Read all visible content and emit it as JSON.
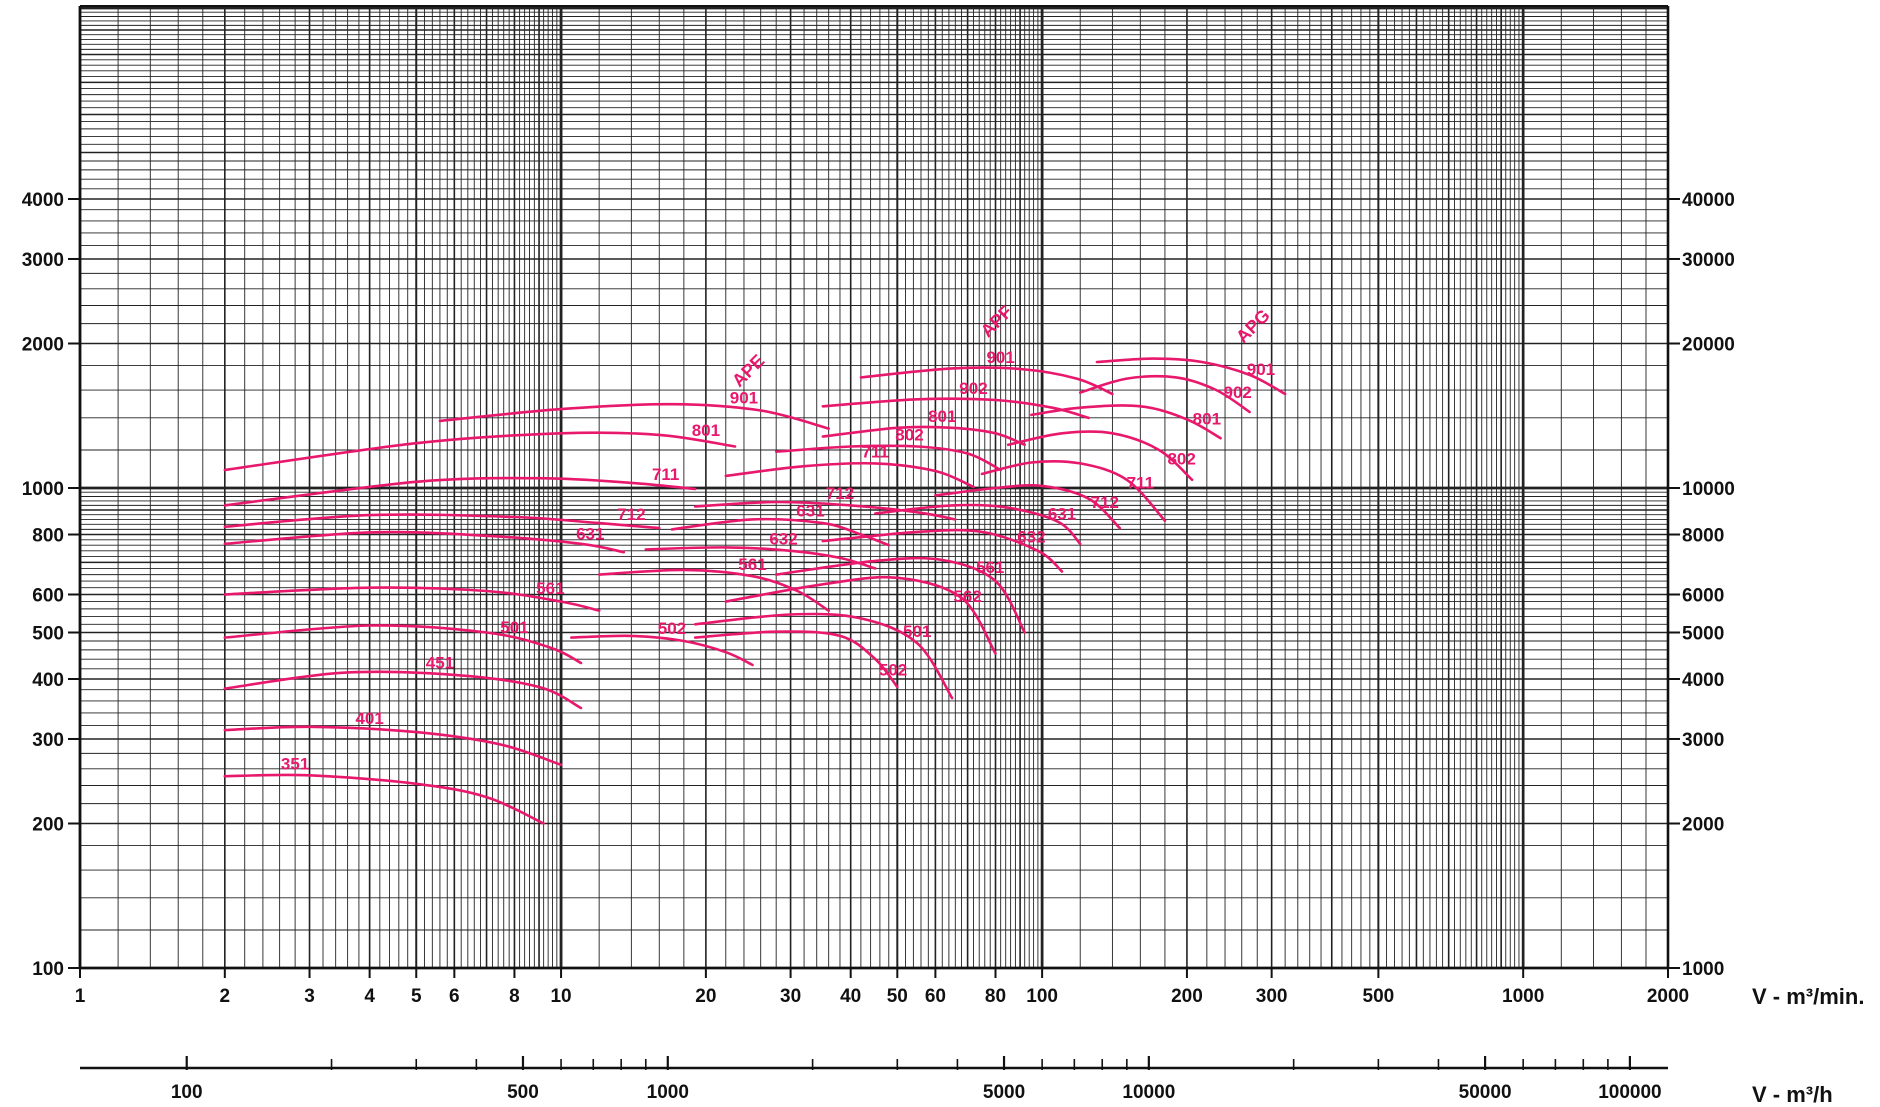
{
  "chart_data": {
    "type": "line",
    "title": "",
    "x_scale": "log",
    "y_scale": "log",
    "xlim": [
      1,
      2000
    ],
    "ylim": [
      100,
      10000
    ],
    "y_right_factor": 10,
    "x_bottom_factor": 60,
    "left_y_ticks": [
      {
        "value": 100,
        "label": "100"
      },
      {
        "value": 200,
        "label": "200"
      },
      {
        "value": 300,
        "label": "300"
      },
      {
        "value": 400,
        "label": "400"
      },
      {
        "value": 500,
        "label": "500"
      },
      {
        "value": 600,
        "label": "600"
      },
      {
        "value": 800,
        "label": "800"
      },
      {
        "value": 1000,
        "label": "1000"
      },
      {
        "value": 2000,
        "label": "2000"
      },
      {
        "value": 3000,
        "label": "3000"
      },
      {
        "value": 4000,
        "label": "4000"
      }
    ],
    "right_y_ticks": [
      {
        "value": 100,
        "label": "1000"
      },
      {
        "value": 200,
        "label": "2000"
      },
      {
        "value": 300,
        "label": "3000"
      },
      {
        "value": 400,
        "label": "4000"
      },
      {
        "value": 500,
        "label": "5000"
      },
      {
        "value": 600,
        "label": "6000"
      },
      {
        "value": 800,
        "label": "8000"
      },
      {
        "value": 1000,
        "label": "10000"
      },
      {
        "value": 2000,
        "label": "20000"
      },
      {
        "value": 3000,
        "label": "30000"
      },
      {
        "value": 4000,
        "label": "40000"
      }
    ],
    "x_ticks": [
      {
        "value": 1,
        "label": "1"
      },
      {
        "value": 2,
        "label": "2"
      },
      {
        "value": 3,
        "label": "3"
      },
      {
        "value": 4,
        "label": "4"
      },
      {
        "value": 5,
        "label": "5"
      },
      {
        "value": 6,
        "label": "6"
      },
      {
        "value": 8,
        "label": "8"
      },
      {
        "value": 10,
        "label": "10"
      },
      {
        "value": 20,
        "label": "20"
      },
      {
        "value": 30,
        "label": "30"
      },
      {
        "value": 40,
        "label": "40"
      },
      {
        "value": 50,
        "label": "50"
      },
      {
        "value": 60,
        "label": "60"
      },
      {
        "value": 80,
        "label": "80"
      },
      {
        "value": 100,
        "label": "100"
      },
      {
        "value": 200,
        "label": "200"
      },
      {
        "value": 300,
        "label": "300"
      },
      {
        "value": 500,
        "label": "500"
      },
      {
        "value": 1000,
        "label": "1000"
      },
      {
        "value": 2000,
        "label": "2000"
      }
    ],
    "xlabel": "V - m³/min.",
    "x2_ticks": [
      {
        "value": 100,
        "label": "100"
      },
      {
        "value": 500,
        "label": "500"
      },
      {
        "value": 1000,
        "label": "1000"
      },
      {
        "value": 5000,
        "label": "5000"
      },
      {
        "value": 10000,
        "label": "10000"
      },
      {
        "value": 50000,
        "label": "50000"
      },
      {
        "value": 100000,
        "label": "100000"
      }
    ],
    "x2_minor_ticks": [
      200,
      300,
      400,
      600,
      700,
      800,
      900,
      2000,
      3000,
      4000,
      6000,
      7000,
      8000,
      9000,
      20000,
      30000,
      40000,
      60000,
      70000,
      80000,
      90000
    ],
    "x2label": "V - m³/h",
    "series_color": "#e8186d",
    "group_labels": [
      {
        "text": "APE",
        "x": 25,
        "y": 1720
      },
      {
        "text": "APF",
        "x": 82,
        "y": 2180
      },
      {
        "text": "APG",
        "x": 280,
        "y": 2130
      }
    ],
    "series": [
      {
        "name": "351",
        "points": [
          [
            2,
            251
          ],
          [
            3,
            252
          ],
          [
            5,
            242
          ],
          [
            7,
            227
          ],
          [
            9.2,
            200
          ]
        ],
        "label_x": 2.8
      },
      {
        "name": "401",
        "points": [
          [
            2,
            313
          ],
          [
            3,
            318
          ],
          [
            5,
            310
          ],
          [
            7.5,
            292
          ],
          [
            10,
            265
          ]
        ],
        "label_x": 4.0
      },
      {
        "name": "451",
        "points": [
          [
            2,
            382
          ],
          [
            3.5,
            412
          ],
          [
            6,
            408
          ],
          [
            9,
            385
          ],
          [
            11,
            348
          ]
        ],
        "label_x": 5.6
      },
      {
        "name": "501",
        "points": [
          [
            2,
            488
          ],
          [
            4,
            517
          ],
          [
            7,
            500
          ],
          [
            9.5,
            465
          ],
          [
            11,
            432
          ]
        ],
        "label_x": 8.0
      },
      {
        "name": "561",
        "points": [
          [
            2,
            600
          ],
          [
            4,
            620
          ],
          [
            7,
            610
          ],
          [
            10,
            580
          ],
          [
            12,
            555
          ]
        ],
        "label_x": 9.5
      },
      {
        "name": "631",
        "points": [
          [
            2,
            765
          ],
          [
            4,
            808
          ],
          [
            7,
            795
          ],
          [
            11,
            765
          ],
          [
            13.5,
            735
          ]
        ],
        "label_x": 11.5
      },
      {
        "name": "712",
        "points": [
          [
            2,
            830
          ],
          [
            4,
            878
          ],
          [
            8,
            870
          ],
          [
            12,
            845
          ],
          [
            16,
            825
          ]
        ],
        "label_x": 14.0
      },
      {
        "name": "711",
        "points": [
          [
            2,
            920
          ],
          [
            5,
            1030
          ],
          [
            9,
            1048
          ],
          [
            14,
            1025
          ],
          [
            19,
            995
          ]
        ],
        "label_x": 16.5
      },
      {
        "name": "801",
        "points": [
          [
            2,
            1090
          ],
          [
            5,
            1240
          ],
          [
            10,
            1300
          ],
          [
            16,
            1290
          ],
          [
            23,
            1220
          ]
        ],
        "label_x": 20.0
      },
      {
        "name": "901",
        "points": [
          [
            5.6,
            1380
          ],
          [
            10,
            1460
          ],
          [
            17,
            1495
          ],
          [
            26,
            1450
          ],
          [
            36,
            1330
          ]
        ],
        "label_x": 24.0
      },
      {
        "name": "502",
        "points": [
          [
            10.5,
            488
          ],
          [
            14,
            492
          ],
          [
            18,
            480
          ],
          [
            22,
            455
          ],
          [
            25,
            428
          ]
        ],
        "label_x": 17.0
      },
      {
        "name": "561",
        "points": [
          [
            12,
            660
          ],
          [
            18,
            675
          ],
          [
            25,
            655
          ],
          [
            31,
            610
          ],
          [
            36,
            555
          ]
        ],
        "label_x": 25.0
      },
      {
        "name": "632",
        "points": [
          [
            15,
            745
          ],
          [
            22,
            752
          ],
          [
            30,
            740
          ],
          [
            38,
            715
          ],
          [
            45,
            680
          ]
        ],
        "label_x": 29.0
      },
      {
        "name": "631",
        "points": [
          [
            17,
            820
          ],
          [
            25,
            860
          ],
          [
            35,
            845
          ],
          [
            42,
            800
          ],
          [
            48,
            760
          ]
        ],
        "label_x": 33.0
      },
      {
        "name": "712",
        "points": [
          [
            19,
            915
          ],
          [
            28,
            935
          ],
          [
            40,
            920
          ],
          [
            55,
            890
          ],
          [
            66,
            860
          ]
        ],
        "label_x": 38.0
      },
      {
        "name": "711",
        "points": [
          [
            22,
            1060
          ],
          [
            32,
            1110
          ],
          [
            45,
            1125
          ],
          [
            60,
            1085
          ],
          [
            72,
            1005
          ]
        ],
        "label_x": 45.0
      },
      {
        "name": "802",
        "points": [
          [
            28,
            1190
          ],
          [
            40,
            1220
          ],
          [
            55,
            1220
          ],
          [
            70,
            1180
          ],
          [
            82,
            1090
          ]
        ],
        "label_x": 53.0
      },
      {
        "name": "801",
        "points": [
          [
            35,
            1280
          ],
          [
            50,
            1335
          ],
          [
            65,
            1335
          ],
          [
            80,
            1300
          ],
          [
            92,
            1230
          ]
        ],
        "label_x": 62.0
      },
      {
        "name": "902",
        "points": [
          [
            35,
            1480
          ],
          [
            55,
            1530
          ],
          [
            80,
            1525
          ],
          [
            105,
            1470
          ],
          [
            125,
            1400
          ]
        ],
        "label_x": 72.0
      },
      {
        "name": "901",
        "points": [
          [
            42,
            1700
          ],
          [
            65,
            1775
          ],
          [
            90,
            1770
          ],
          [
            118,
            1690
          ],
          [
            140,
            1570
          ]
        ],
        "label_x": 82.0
      },
      {
        "name": "502",
        "points": [
          [
            19,
            488
          ],
          [
            28,
            502
          ],
          [
            38,
            492
          ],
          [
            45,
            440
          ],
          [
            50,
            385
          ]
        ],
        "label_x": 49.0
      },
      {
        "name": "501",
        "points": [
          [
            19,
            520
          ],
          [
            30,
            545
          ],
          [
            42,
            535
          ],
          [
            55,
            475
          ],
          [
            65,
            365
          ]
        ],
        "label_x": 55.0
      },
      {
        "name": "562",
        "points": [
          [
            22,
            580
          ],
          [
            35,
            630
          ],
          [
            50,
            650
          ],
          [
            68,
            590
          ],
          [
            80,
            452
          ]
        ],
        "label_x": 70.0
      },
      {
        "name": "561",
        "points": [
          [
            28,
            660
          ],
          [
            45,
            705
          ],
          [
            62,
            708
          ],
          [
            80,
            640
          ],
          [
            92,
            500
          ]
        ],
        "label_x": 78.0
      },
      {
        "name": "632",
        "points": [
          [
            35,
            775
          ],
          [
            55,
            810
          ],
          [
            75,
            810
          ],
          [
            98,
            740
          ],
          [
            110,
            670
          ]
        ],
        "label_x": 95.0
      },
      {
        "name": "631",
        "points": [
          [
            45,
            885
          ],
          [
            65,
            920
          ],
          [
            85,
            910
          ],
          [
            108,
            850
          ],
          [
            120,
            765
          ]
        ],
        "label_x": 110.0
      },
      {
        "name": "712",
        "points": [
          [
            60,
            965
          ],
          [
            80,
            1000
          ],
          [
            100,
            1010
          ],
          [
            125,
            950
          ],
          [
            145,
            825
          ]
        ],
        "label_x": 135.0
      },
      {
        "name": "711",
        "points": [
          [
            75,
            1070
          ],
          [
            95,
            1130
          ],
          [
            120,
            1125
          ],
          [
            150,
            1040
          ],
          [
            180,
            855
          ]
        ],
        "label_x": 160.0
      },
      {
        "name": "802",
        "points": [
          [
            85,
            1230
          ],
          [
            110,
            1300
          ],
          [
            140,
            1300
          ],
          [
            175,
            1200
          ],
          [
            205,
            1040
          ]
        ],
        "label_x": 195.0
      },
      {
        "name": "801",
        "points": [
          [
            95,
            1420
          ],
          [
            120,
            1470
          ],
          [
            160,
            1480
          ],
          [
            200,
            1390
          ],
          [
            235,
            1270
          ]
        ],
        "label_x": 220.0
      },
      {
        "name": "902",
        "points": [
          [
            120,
            1580
          ],
          [
            150,
            1690
          ],
          [
            190,
            1700
          ],
          [
            230,
            1600
          ],
          [
            270,
            1440
          ]
        ],
        "label_x": 255.0
      },
      {
        "name": "901",
        "points": [
          [
            130,
            1830
          ],
          [
            170,
            1860
          ],
          [
            215,
            1830
          ],
          [
            270,
            1720
          ],
          [
            320,
            1570
          ]
        ],
        "label_x": 285.0
      }
    ]
  }
}
